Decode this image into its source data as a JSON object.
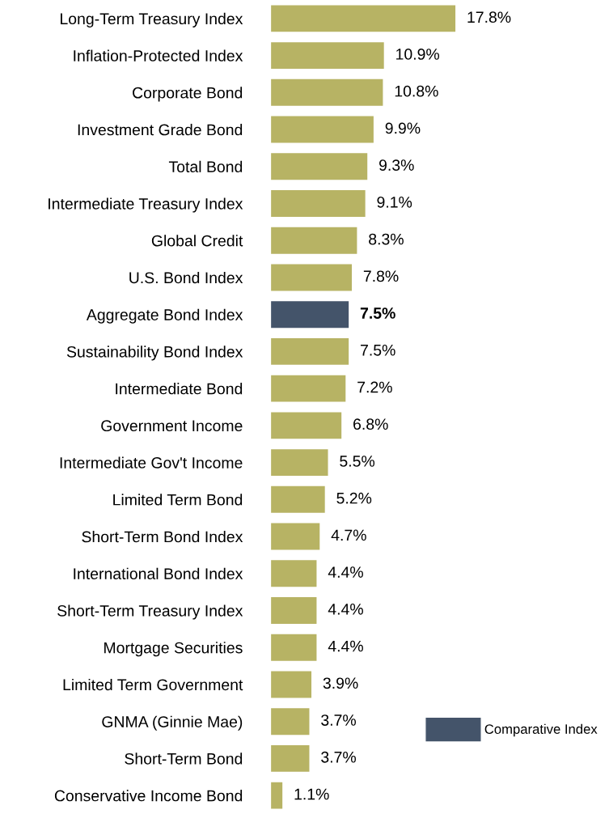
{
  "chart_data": {
    "type": "bar",
    "orientation": "horizontal",
    "legend": "bottom right",
    "categories": [
      "Long-Term Treasury Index",
      "Inflation-Protected Index",
      "Corporate Bond",
      "Investment Grade Bond",
      "Total Bond",
      "Intermediate Treasury Index",
      "Global Credit",
      "U.S. Bond Index",
      "Aggregate Bond Index",
      "Sustainability Bond Index",
      "Intermediate Bond",
      "Government Income",
      "Intermediate Gov't Income",
      "Limited Term Bond",
      "Short-Term Bond Index",
      "International Bond Index",
      "Short-Term Treasury Index",
      "Mortgage Securities",
      "Limited Term Government",
      "GNMA (Ginnie Mae)",
      "Short-Term Bond",
      "Conservative Income Bond"
    ],
    "series": [
      {
        "color": "#b7b364",
        "values": [
          17.8,
          10.9,
          10.8,
          9.9,
          9.3,
          9.1,
          8.3,
          7.8,
          null,
          7.5,
          7.2,
          6.8,
          5.5,
          5.2,
          4.7,
          4.4,
          4.4,
          4.4,
          3.9,
          3.7,
          3.7,
          1.1
        ],
        "value_labels": [
          "17.8%",
          "10.9%",
          "10.8%",
          "9.9%",
          "9.3%",
          "9.1%",
          "8.3%",
          "7.8%",
          null,
          "7.5%",
          "7.2%",
          "6.8%",
          "5.5%",
          "5.2%",
          "4.7%",
          "4.4%",
          "4.4%",
          "4.4%",
          "3.9%",
          "3.7%",
          "3.7%",
          "1.1%"
        ]
      },
      {
        "name": "Comparative Index",
        "color": "#44546a",
        "values": [
          null,
          null,
          null,
          null,
          null,
          null,
          null,
          null,
          7.5,
          null,
          null,
          null,
          null,
          null,
          null,
          null,
          null,
          null,
          null,
          null,
          null,
          null
        ],
        "value_labels": [
          null,
          null,
          null,
          null,
          null,
          null,
          null,
          null,
          "7.5%",
          null,
          null,
          null,
          null,
          null,
          null,
          null,
          null,
          null,
          null,
          null,
          null,
          null
        ]
      }
    ]
  }
}
